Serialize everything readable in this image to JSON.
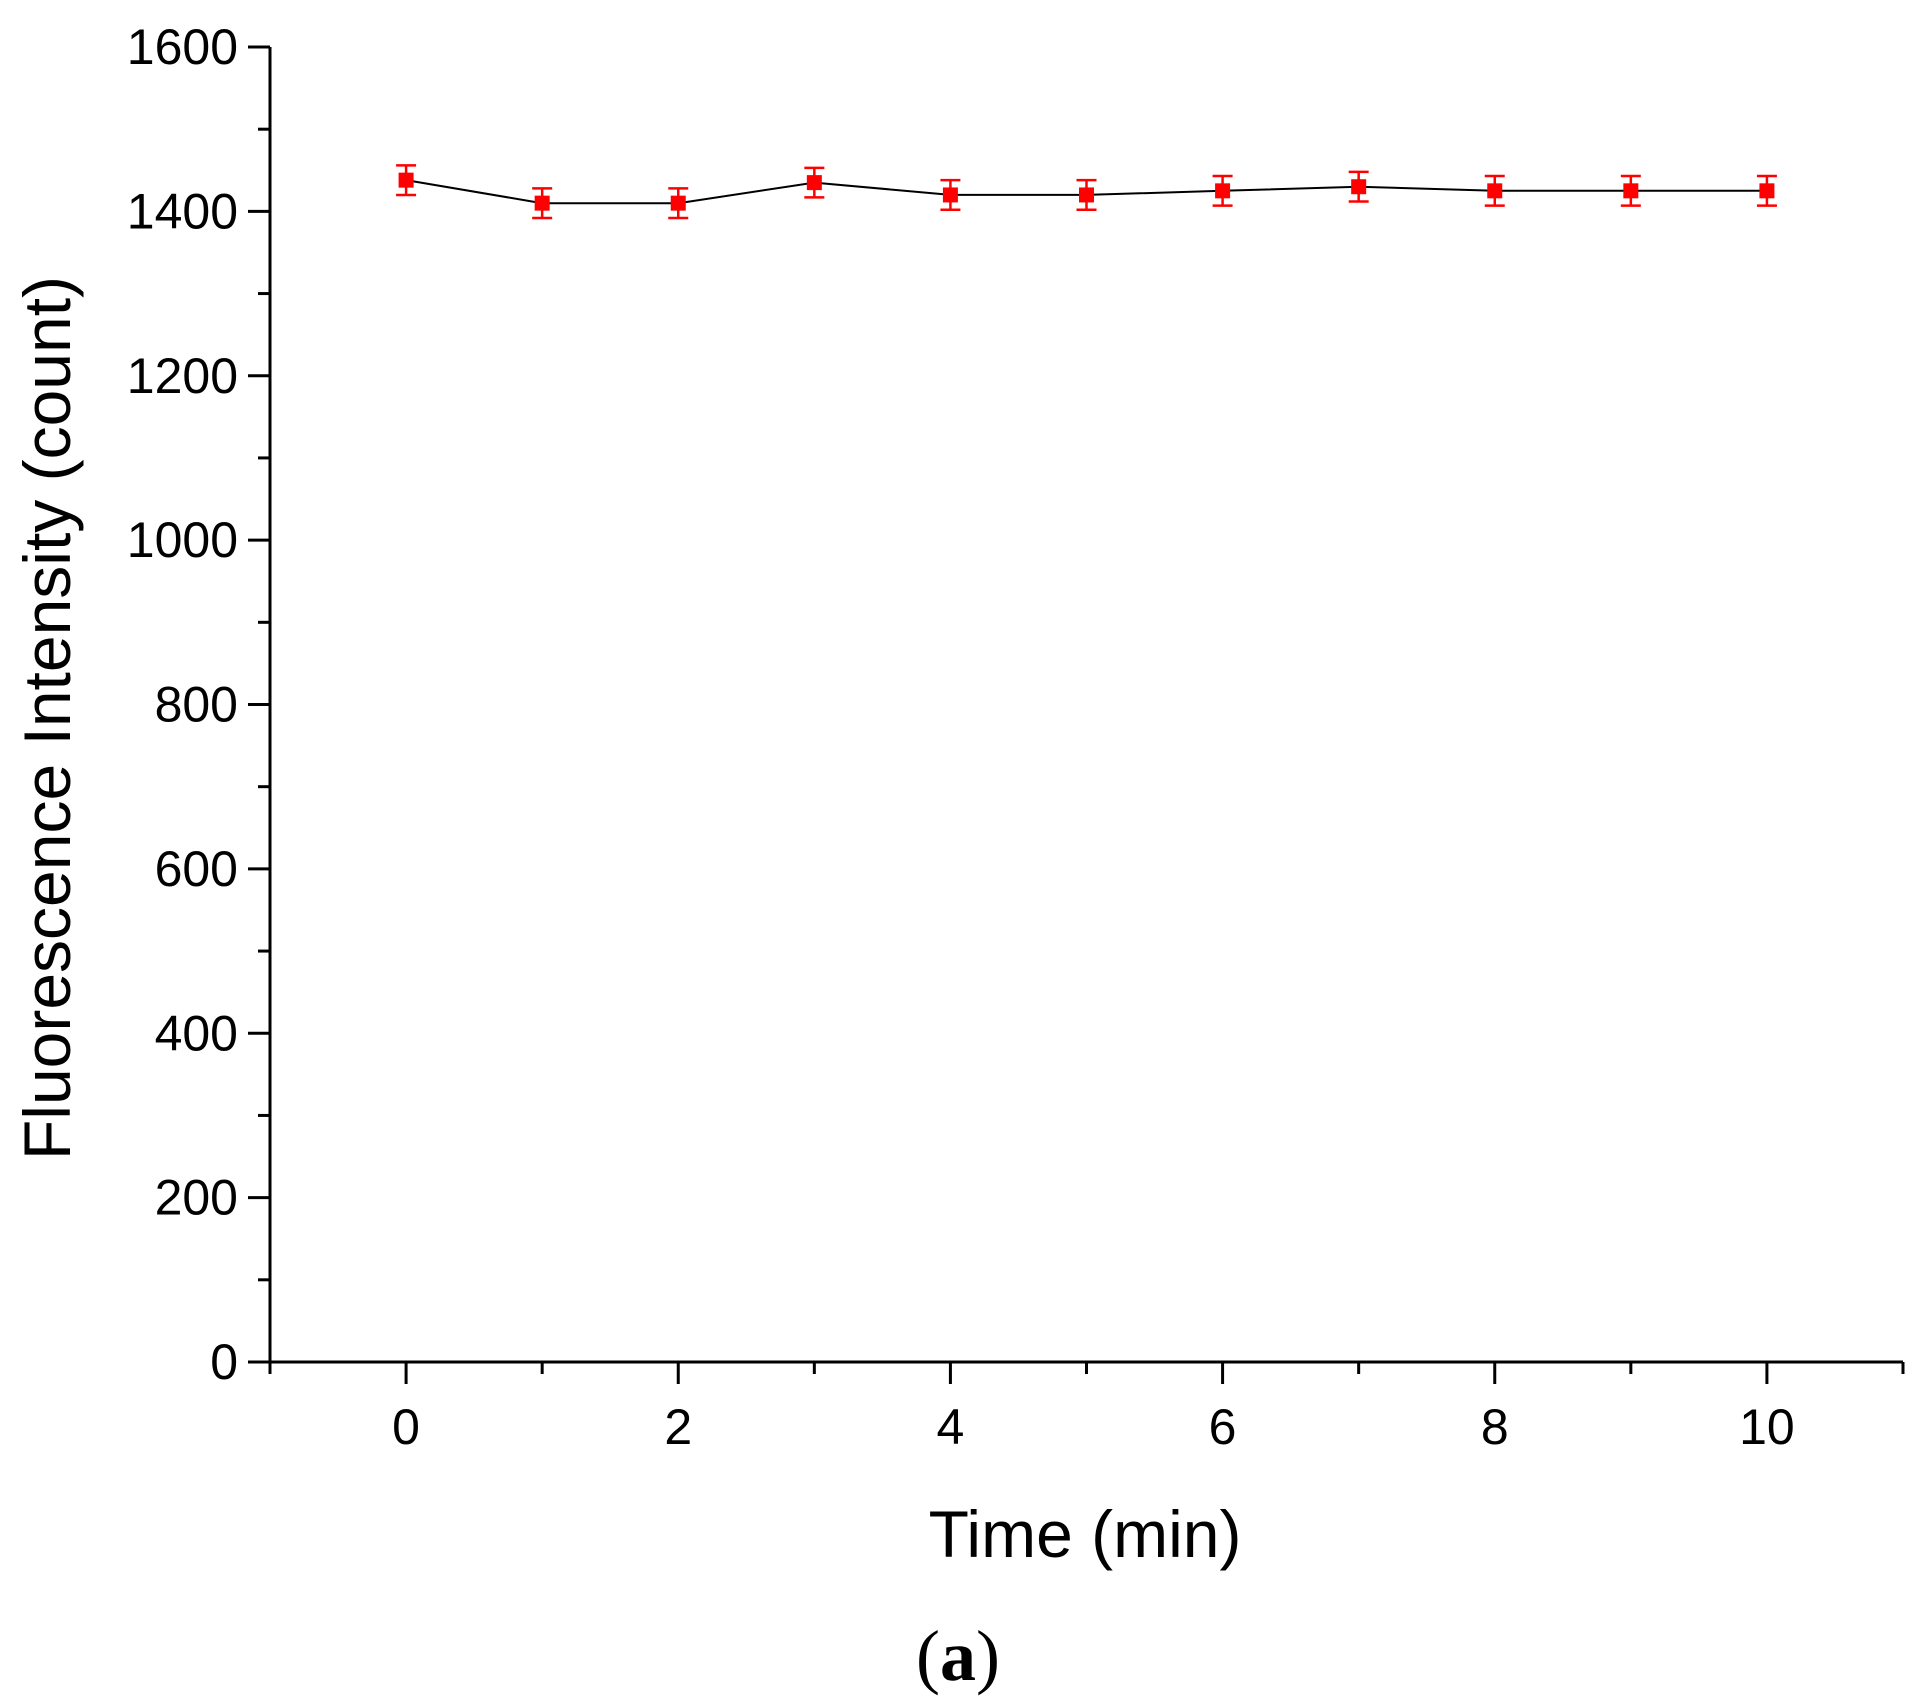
{
  "chart_data": {
    "type": "line",
    "title": "",
    "xlabel": "Time (min)",
    "ylabel": "Fluorescence Intensity (count)",
    "xlim": [
      -1,
      11
    ],
    "ylim": [
      0,
      1600
    ],
    "xticks": [
      0,
      2,
      4,
      6,
      8,
      10
    ],
    "yticks": [
      0,
      200,
      400,
      600,
      800,
      1000,
      1200,
      1400,
      1600
    ],
    "grid": false,
    "legend": "none",
    "series": [
      {
        "x": [
          0,
          1,
          2,
          3,
          4,
          5,
          6,
          7,
          8,
          9,
          10
        ],
        "values": [
          1438,
          1410,
          1410,
          1435,
          1420,
          1420,
          1425,
          1430,
          1425,
          1425,
          1425
        ],
        "error": [
          18,
          18,
          18,
          18,
          18,
          18,
          18,
          18,
          18,
          18,
          18
        ],
        "line_color": "#000000",
        "marker_color": "#ff0000",
        "marker": "square"
      }
    ]
  },
  "panel_label": {
    "open": "(",
    "letter": "a",
    "close": ")"
  }
}
